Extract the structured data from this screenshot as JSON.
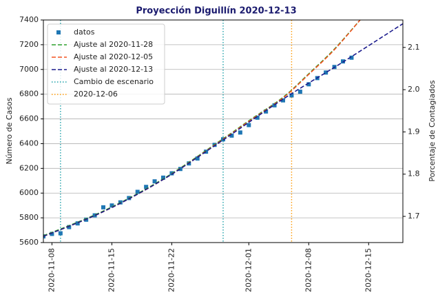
{
  "chart_data": {
    "type": "line",
    "title": "Proyección Diguillín 2020-12-13",
    "y_label": "Número de Casos",
    "y2_label": "Porcentaje de Contagiados",
    "xlim": [
      "2020-11-07",
      "2020-12-19"
    ],
    "xticks": [
      "2020-11-08",
      "2020-11-15",
      "2020-11-22",
      "2020-12-01",
      "2020-12-08",
      "2020-12-15"
    ],
    "ylim": [
      5600,
      7400
    ],
    "yticks": [
      5600,
      5800,
      6000,
      6200,
      6400,
      6600,
      6800,
      7000,
      7200,
      7400
    ],
    "y2lim": [
      1.638,
      2.165
    ],
    "y2ticks": [
      1.7,
      1.8,
      1.9,
      {
        "value": 2.0,
        "label": "2.0"
      },
      2.1
    ],
    "grid": true,
    "legend": "upper left",
    "series": [
      {
        "name": "datos",
        "style": "markers",
        "color": "#1f77b4",
        "x": [
          "2020-11-07",
          "2020-11-08",
          "2020-11-09",
          "2020-11-10",
          "2020-11-11",
          "2020-11-12",
          "2020-11-13",
          "2020-11-14",
          "2020-11-15",
          "2020-11-16",
          "2020-11-17",
          "2020-11-18",
          "2020-11-19",
          "2020-11-20",
          "2020-11-21",
          "2020-11-22",
          "2020-11-23",
          "2020-11-24",
          "2020-11-25",
          "2020-11-26",
          "2020-11-27",
          "2020-11-28",
          "2020-11-29",
          "2020-11-30",
          "2020-12-01",
          "2020-12-02",
          "2020-12-03",
          "2020-12-04",
          "2020-12-05",
          "2020-12-06",
          "2020-12-07",
          "2020-12-08",
          "2020-12-09",
          "2020-12-10",
          "2020-12-11",
          "2020-12-12",
          "2020-12-13"
        ],
        "values": [
          5650,
          5670,
          5675,
          5725,
          5755,
          5785,
          5820,
          5885,
          5900,
          5925,
          5960,
          6010,
          6050,
          6095,
          6125,
          6160,
          6195,
          6240,
          6280,
          6335,
          6390,
          6435,
          6465,
          6490,
          6550,
          6610,
          6660,
          6710,
          6750,
          6790,
          6820,
          6880,
          6930,
          6975,
          7020,
          7065,
          7095
        ]
      },
      {
        "name": "Ajuste al 2020-11-28",
        "style": "dashed",
        "color": "#2ca02c",
        "x": [
          "2020-11-07",
          "2020-11-14",
          "2020-11-21",
          "2020-11-28",
          "2020-12-01",
          "2020-12-05",
          "2020-12-08",
          "2020-12-11",
          "2020-12-14"
        ],
        "values": [
          5655,
          5855,
          6115,
          6440,
          6585,
          6775,
          6965,
          7165,
          7400
        ]
      },
      {
        "name": "Ajuste al 2020-12-05",
        "style": "dashed",
        "color": "#f4511e",
        "x": [
          "2020-11-07",
          "2020-11-14",
          "2020-11-21",
          "2020-11-28",
          "2020-12-01",
          "2020-12-05",
          "2020-12-08",
          "2020-12-11",
          "2020-12-14"
        ],
        "values": [
          5650,
          5850,
          6110,
          6435,
          6580,
          6770,
          6960,
          7160,
          7400
        ]
      },
      {
        "name": "Ajuste al 2020-12-13",
        "style": "dashed",
        "color": "#1a1a8c",
        "x": [
          "2020-11-07",
          "2020-11-14",
          "2020-11-21",
          "2020-11-28",
          "2020-12-05",
          "2020-12-12",
          "2020-12-19"
        ],
        "values": [
          5650,
          5850,
          6110,
          6430,
          6760,
          7060,
          7370
        ]
      }
    ],
    "vlines": [
      {
        "name": "Cambio de escenario",
        "color": "#1a9fa8",
        "x": [
          "2020-11-09",
          "2020-11-28"
        ]
      },
      {
        "name": "2020-12-06",
        "color": "#ff9800",
        "x": [
          "2020-12-06"
        ]
      }
    ]
  }
}
